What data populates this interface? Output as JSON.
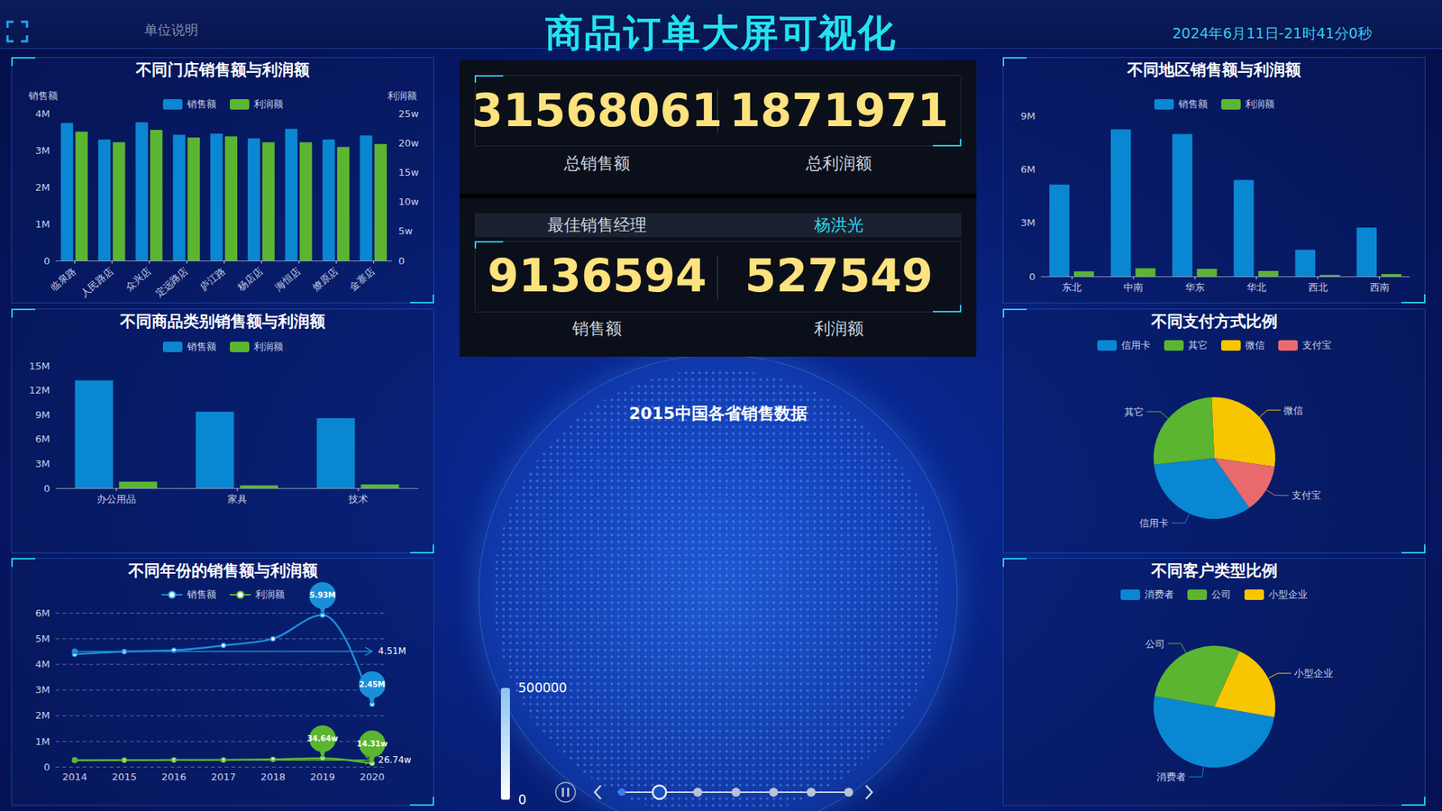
{
  "header": {
    "title": "商品订单大屏可视化",
    "unit_note": "单位说明",
    "datetime": "2024年6月11日-21时41分0秒"
  },
  "kpis": {
    "total_sales": {
      "label": "总销售额",
      "value": 31568061
    },
    "total_profit": {
      "label": "总利润额",
      "value": 1871971
    },
    "best_manager": {
      "label": "最佳销售经理",
      "name": "杨洪光"
    },
    "manager_sales": {
      "label": "销售额",
      "value": 9136594
    },
    "manager_profit": {
      "label": "利润额",
      "value": 527549
    }
  },
  "chart_data": [
    {
      "type": "bar",
      "title": "不同门店销售额与利润额",
      "categories": [
        "临泉路",
        "人民路店",
        "众兴店",
        "定远路店",
        "庐江路",
        "杨店店",
        "海恒店",
        "燎原店",
        "金寨店"
      ],
      "series": [
        {
          "name": "销售额",
          "color": "#0a87d2",
          "values": [
            3740000,
            3290000,
            3760000,
            3420000,
            3450000,
            3320000,
            3580000,
            3290000,
            3400000
          ]
        },
        {
          "name": "利润额",
          "color": "#5cb531",
          "axis": "y2",
          "values": [
            219000,
            201000,
            222000,
            209000,
            211000,
            201000,
            201000,
            193000,
            198000
          ]
        }
      ],
      "y_label": "销售额",
      "y2_label": "利润额",
      "ylim": [
        0,
        4000000
      ],
      "yticks": [
        0,
        {
          "value": 1000000,
          "label": "1M"
        },
        {
          "value": 2000000,
          "label": "2M"
        },
        {
          "value": 3000000,
          "label": "3M"
        },
        {
          "value": 4000000,
          "label": "4M"
        }
      ],
      "y2lim": [
        0,
        250000
      ],
      "y2ticks": [
        0,
        {
          "value": 50000,
          "label": "5w"
        },
        {
          "value": 100000,
          "label": "10w"
        },
        {
          "value": 150000,
          "label": "15w"
        },
        {
          "value": 200000,
          "label": "20w"
        },
        {
          "value": 250000,
          "label": "25w"
        }
      ]
    },
    {
      "type": "bar",
      "title": "不同商品类别销售额与利润额",
      "categories": [
        "办公用品",
        "家具",
        "技术"
      ],
      "series": [
        {
          "name": "销售额",
          "color": "#0a87d2",
          "values": [
            13200000,
            9360000,
            8570000
          ]
        },
        {
          "name": "利润额",
          "color": "#5cb531",
          "values": [
            790000,
            340000,
            450000
          ]
        }
      ],
      "ylim": [
        0,
        15000000
      ],
      "yticks": [
        0,
        {
          "value": 3000000,
          "label": "3M"
        },
        {
          "value": 6000000,
          "label": "6M"
        },
        {
          "value": 9000000,
          "label": "9M"
        },
        {
          "value": 12000000,
          "label": "12M"
        },
        {
          "value": 15000000,
          "label": "15M"
        }
      ]
    },
    {
      "type": "line",
      "title": "不同年份的销售额与利润额",
      "x": [
        2014,
        2015,
        2016,
        2017,
        2018,
        2019,
        2020
      ],
      "xlim": [
        2014,
        2020
      ],
      "xticks": [
        2014,
        2015,
        2016,
        2017,
        2018,
        2019,
        2020
      ],
      "ylim": [
        0,
        6000000
      ],
      "yticks": [
        0,
        {
          "value": 1000000,
          "label": "1M"
        },
        {
          "value": 2000000,
          "label": "2M"
        },
        {
          "value": 3000000,
          "label": "3M"
        },
        {
          "value": 4000000,
          "label": "4M"
        },
        {
          "value": 5000000,
          "label": "5M"
        },
        {
          "value": 6000000,
          "label": "6M"
        }
      ],
      "grid": true,
      "series": [
        {
          "name": "销售额",
          "color": "#1a8fd8",
          "marker": "circle",
          "values": [
            4400000,
            4500000,
            4550000,
            4740000,
            5000000,
            5930000,
            2450000
          ]
        },
        {
          "name": "利润额",
          "color": "#5cb531",
          "marker": "circle",
          "values": [
            260000,
            270000,
            275000,
            280000,
            297300,
            346400,
            143100
          ]
        }
      ],
      "annotations": [
        {
          "series": "销售额",
          "x": 2019,
          "y": 5930000,
          "text": "5.93M"
        },
        {
          "series": "销售额",
          "x": 2020,
          "y": 2450000,
          "text": "2.45M"
        },
        {
          "series": "销售额",
          "y": 4510000,
          "text": "4.51M"
        },
        {
          "series": "利润额",
          "x": 2019,
          "y": 346400,
          "text": "34.64w"
        },
        {
          "series": "利润额",
          "x": 2020,
          "y": 143100,
          "text": "14.31w"
        },
        {
          "series": "利润额",
          "y": 267400,
          "text": "26.74w"
        }
      ]
    },
    {
      "type": "bar",
      "title": "不同地区销售额与利润额",
      "categories": [
        "东北",
        "中南",
        "华东",
        "华北",
        "西北",
        "西南"
      ],
      "series": [
        {
          "name": "销售额",
          "color": "#0a87d2",
          "values": [
            5140000,
            8230000,
            7970000,
            5400000,
            1490000,
            2730000
          ]
        },
        {
          "name": "利润额",
          "color": "#5cb531",
          "values": [
            280000,
            450000,
            420000,
            300000,
            80000,
            130000
          ]
        }
      ],
      "ylim": [
        0,
        9000000
      ],
      "yticks": [
        0,
        {
          "value": 3000000,
          "label": "3M"
        },
        {
          "value": 6000000,
          "label": "6M"
        },
        {
          "value": 9000000,
          "label": "9M"
        }
      ]
    },
    {
      "type": "pie",
      "title": "不同支付方式比例",
      "categories": [
        "信用卡",
        "其它",
        "微信",
        "支付宝"
      ],
      "values": [
        33,
        26,
        28,
        13
      ],
      "colors": [
        "#0a87d2",
        "#5cb531",
        "#f8c600",
        "#e96a6c"
      ]
    },
    {
      "type": "pie",
      "title": "不同客户类型比例",
      "categories": [
        "消费者",
        "公司",
        "小型企业"
      ],
      "values": [
        50,
        29,
        21
      ],
      "colors": [
        "#0a87d2",
        "#5cb531",
        "#f8c600"
      ]
    },
    {
      "type": "map",
      "title": "2015中国各省销售数据",
      "colorbar": {
        "range": [
          0,
          500000
        ],
        "ticks": [
          0,
          500000
        ],
        "colors": [
          "#ffffff",
          "#8cc4f2"
        ]
      }
    }
  ]
}
